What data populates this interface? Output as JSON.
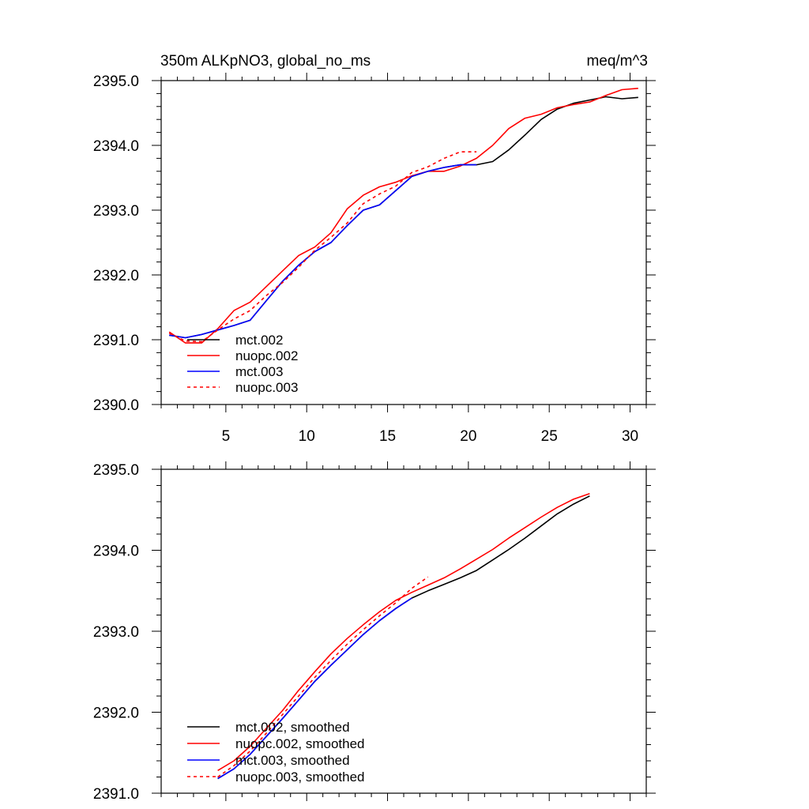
{
  "chart_data": [
    {
      "type": "line",
      "title_left": "350m ALKpNO3, global_no_ms",
      "title_right": "meq/m^3",
      "xlim": [
        1,
        31
      ],
      "ylim": [
        2390.0,
        2395.0
      ],
      "x_ticks": [
        5,
        10,
        15,
        20,
        25,
        30
      ],
      "x_tick_labels": [
        "5",
        "10",
        "15",
        "20",
        "25",
        "30"
      ],
      "y_ticks": [
        2390.0,
        2391.0,
        2392.0,
        2393.0,
        2394.0,
        2395.0
      ],
      "y_tick_labels": [
        "2390.0",
        "2391.0",
        "2392.0",
        "2393.0",
        "2394.0",
        "2395.0"
      ],
      "legend_position": "bottom-left",
      "series": [
        {
          "name": "mct.002",
          "color": "#000000",
          "dash": "solid",
          "x": [
            1.5,
            2.5,
            3.5,
            4.5,
            5.5,
            6.5,
            7.5,
            8.5,
            9.5,
            10.5,
            11.5,
            12.5,
            13.5,
            14.5,
            15.5,
            16.5,
            17.5,
            18.5,
            19.5,
            20.5,
            21.5,
            22.5,
            23.5,
            24.5,
            25.5,
            26.5,
            27.5,
            28.5,
            29.5,
            30.5
          ],
          "y": [
            2391.07,
            2391.03,
            2391.08,
            2391.15,
            2391.22,
            2391.3,
            2391.6,
            2391.9,
            2392.15,
            2392.36,
            2392.5,
            2392.76,
            2393.0,
            2393.08,
            2393.3,
            2393.52,
            2393.6,
            2393.66,
            2393.7,
            2393.7,
            2393.75,
            2393.93,
            2394.16,
            2394.4,
            2394.56,
            2394.65,
            2394.7,
            2394.75,
            2394.72,
            2394.74
          ]
        },
        {
          "name": "nuopc.002",
          "color": "#ff0000",
          "dash": "solid",
          "x": [
            1.5,
            2.5,
            3.5,
            4.5,
            5.5,
            6.5,
            7.5,
            8.5,
            9.5,
            10.5,
            11.5,
            12.5,
            13.5,
            14.5,
            15.5,
            16.5,
            17.5,
            18.5,
            19.5,
            20.5,
            21.5,
            22.5,
            23.5,
            24.5,
            25.5,
            26.5,
            27.5,
            28.5,
            29.5,
            30.5
          ],
          "y": [
            2391.12,
            2390.95,
            2390.95,
            2391.17,
            2391.45,
            2391.58,
            2391.82,
            2392.06,
            2392.3,
            2392.43,
            2392.65,
            2393.02,
            2393.23,
            2393.36,
            2393.43,
            2393.53,
            2393.6,
            2393.6,
            2393.68,
            2393.8,
            2394.0,
            2394.26,
            2394.42,
            2394.48,
            2394.58,
            2394.63,
            2394.67,
            2394.77,
            2394.86,
            2394.88
          ]
        },
        {
          "name": "mct.003",
          "color": "#0000ff",
          "dash": "solid",
          "x": [
            1.5,
            2.5,
            3.5,
            4.5,
            5.5,
            6.5,
            7.5,
            8.5,
            9.5,
            10.5,
            11.5,
            12.5,
            13.5,
            14.5,
            15.5,
            16.5,
            17.5,
            18.5,
            19.5,
            20.5
          ],
          "y": [
            2391.07,
            2391.03,
            2391.08,
            2391.15,
            2391.22,
            2391.3,
            2391.6,
            2391.9,
            2392.15,
            2392.36,
            2392.5,
            2392.76,
            2393.0,
            2393.08,
            2393.3,
            2393.52,
            2393.6,
            2393.66,
            2393.7,
            2393.7
          ]
        },
        {
          "name": "nuopc.003",
          "color": "#ff0000",
          "dash": "dashed",
          "x": [
            1.5,
            2.5,
            3.5,
            4.5,
            5.5,
            6.5,
            7.5,
            8.5,
            9.5,
            10.5,
            11.5,
            12.5,
            13.5,
            14.5,
            15.5,
            16.5,
            17.5,
            18.5,
            19.5,
            20.5
          ],
          "y": [
            2391.1,
            2390.98,
            2390.97,
            2391.15,
            2391.32,
            2391.45,
            2391.68,
            2391.88,
            2392.12,
            2392.38,
            2392.58,
            2392.8,
            2393.1,
            2393.25,
            2393.37,
            2393.58,
            2393.67,
            2393.8,
            2393.9,
            2393.9
          ]
        }
      ]
    },
    {
      "type": "line",
      "xlim": [
        1,
        31
      ],
      "ylim": [
        2391.0,
        2395.0
      ],
      "x_ticks": [
        5,
        10,
        15,
        20,
        25,
        30
      ],
      "y_ticks": [
        2391.0,
        2392.0,
        2393.0,
        2394.0,
        2395.0
      ],
      "y_tick_labels": [
        "2391.0",
        "2392.0",
        "2393.0",
        "2394.0",
        "2395.0"
      ],
      "legend_position": "bottom-left",
      "series": [
        {
          "name": "mct.002, smoothed",
          "color": "#000000",
          "dash": "solid",
          "x": [
            4.5,
            5.5,
            6.5,
            7.5,
            8.5,
            9.5,
            10.5,
            11.5,
            12.5,
            13.5,
            14.5,
            15.5,
            16.5,
            17.5,
            18.5,
            19.5,
            20.5,
            21.5,
            22.5,
            23.5,
            24.5,
            25.5,
            26.5,
            27.5
          ],
          "y": [
            2391.18,
            2391.3,
            2391.48,
            2391.7,
            2391.92,
            2392.15,
            2392.38,
            2392.58,
            2392.77,
            2392.96,
            2393.13,
            2393.28,
            2393.41,
            2393.5,
            2393.58,
            2393.66,
            2393.75,
            2393.88,
            2394.01,
            2394.15,
            2394.3,
            2394.45,
            2394.57,
            2394.67
          ]
        },
        {
          "name": "nuopc.002, smoothed",
          "color": "#ff0000",
          "dash": "solid",
          "x": [
            4.5,
            5.5,
            6.5,
            7.5,
            8.5,
            9.5,
            10.5,
            11.5,
            12.5,
            13.5,
            14.5,
            15.5,
            16.5,
            17.5,
            18.5,
            19.5,
            20.5,
            21.5,
            22.5,
            23.5,
            24.5,
            25.5,
            26.5,
            27.5
          ],
          "y": [
            2391.28,
            2391.4,
            2391.58,
            2391.8,
            2392.02,
            2392.27,
            2392.5,
            2392.72,
            2392.91,
            2393.08,
            2393.24,
            2393.38,
            2393.48,
            2393.57,
            2393.66,
            2393.77,
            2393.89,
            2394.01,
            2394.15,
            2394.28,
            2394.41,
            2394.53,
            2394.63,
            2394.7
          ]
        },
        {
          "name": "mct.003, smoothed",
          "color": "#0000ff",
          "dash": "solid",
          "x": [
            4.5,
            5.5,
            6.5,
            7.5,
            8.5,
            9.5,
            10.5,
            11.5,
            12.5,
            13.5,
            14.5,
            15.5,
            16.5
          ],
          "y": [
            2391.18,
            2391.3,
            2391.48,
            2391.7,
            2391.92,
            2392.15,
            2392.38,
            2392.58,
            2392.77,
            2392.96,
            2393.13,
            2393.28,
            2393.41
          ]
        },
        {
          "name": "nuopc.003, smoothed",
          "color": "#ff0000",
          "dash": "dashed",
          "x": [
            4.5,
            5.5,
            6.5,
            7.5,
            8.5,
            9.5,
            10.5,
            11.5,
            12.5,
            13.5,
            14.5,
            15.5,
            16.5,
            17.5
          ],
          "y": [
            2391.2,
            2391.34,
            2391.52,
            2391.74,
            2391.97,
            2392.2,
            2392.43,
            2392.64,
            2392.84,
            2393.02,
            2393.19,
            2393.35,
            2393.53,
            2393.67
          ]
        }
      ]
    }
  ]
}
